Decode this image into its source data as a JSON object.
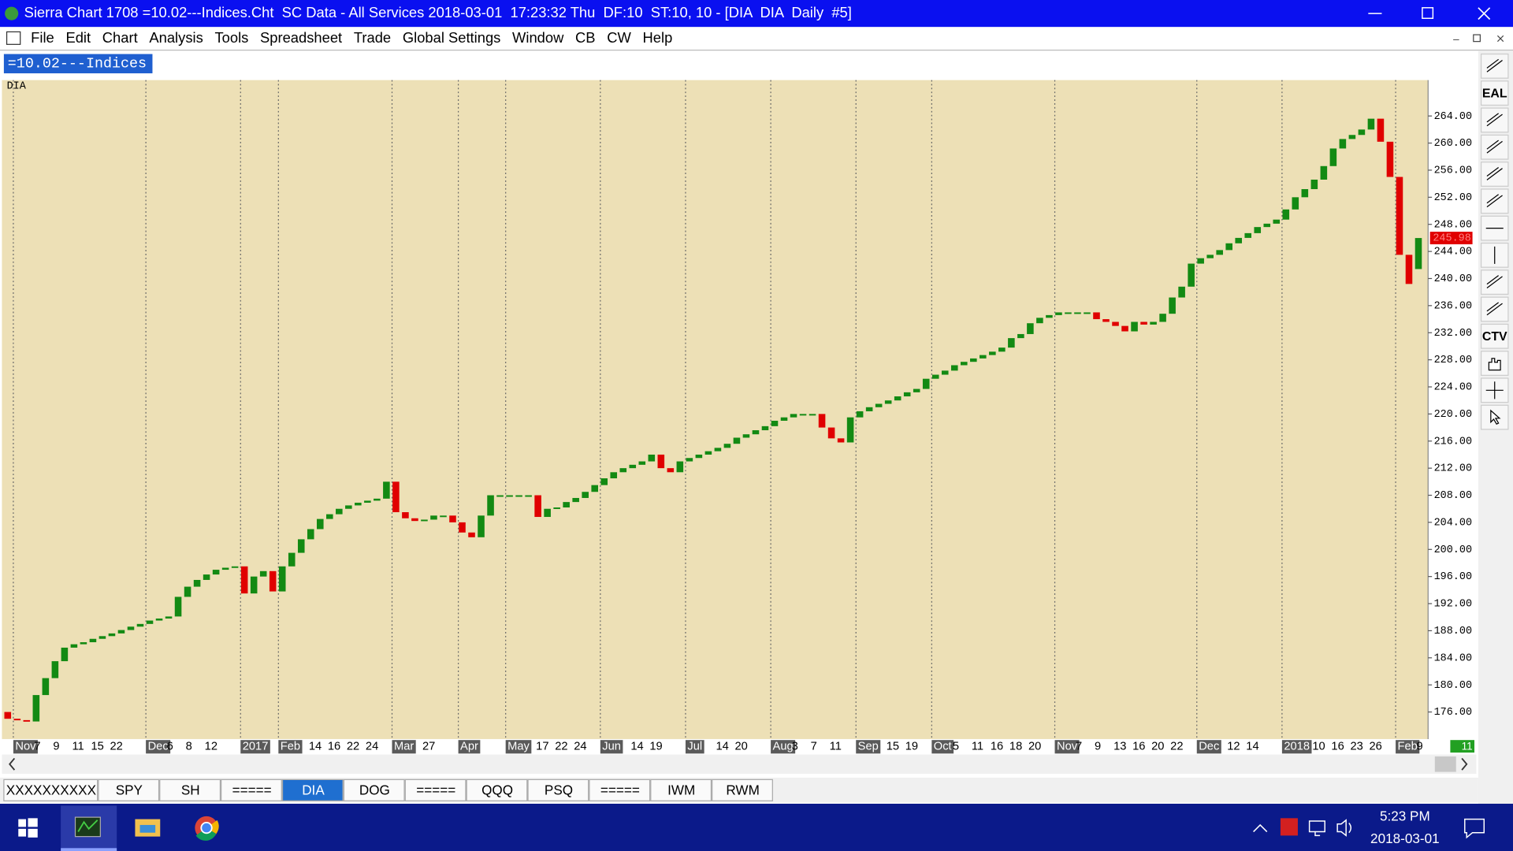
{
  "window": {
    "title": "Sierra Chart 1708 =10.02---Indices.Cht  SC Data - All Services 2018-03-01  17:23:32 Thu  DF:10  ST:10, 10 - [DIA  DIA  Daily  #5]"
  },
  "menu": [
    "File",
    "Edit",
    "Chart",
    "Analysis",
    "Tools",
    "Spreadsheet",
    "Trade",
    "Global Settings",
    "Window",
    "CB",
    "CW",
    "Help"
  ],
  "chart_tab": "=10.02---Indices",
  "toolbar": {
    "eal": "EAL",
    "ctv": "CTV"
  },
  "chart_data": {
    "type": "candlestick",
    "symbol": "DIA",
    "up_color": "#138a13",
    "down_color": "#e00000",
    "categories": [
      null,
      "Nov",
      null,
      "7",
      null,
      "9",
      null,
      "11",
      null,
      "15",
      null,
      "22",
      null,
      null,
      null,
      "Dec",
      null,
      "6",
      null,
      "8",
      null,
      "12",
      null,
      null,
      null,
      "2017",
      null,
      null,
      null,
      "Feb",
      null,
      null,
      "14",
      null,
      "16",
      null,
      "22",
      null,
      "24",
      null,
      null,
      "Mar",
      null,
      null,
      "27",
      null,
      null,
      null,
      "Apr",
      null,
      null,
      null,
      null,
      "May",
      null,
      null,
      "17",
      null,
      "22",
      null,
      "24",
      null,
      null,
      "Jun",
      null,
      null,
      "14",
      null,
      "19",
      null,
      null,
      null,
      "Jul",
      null,
      null,
      "14",
      null,
      "20",
      null,
      null,
      null,
      "Aug",
      null,
      "3",
      null,
      "7",
      null,
      "11",
      null,
      null,
      "Sep",
      null,
      null,
      "15",
      null,
      "19",
      null,
      null,
      "Oct",
      null,
      "5",
      null,
      "11",
      null,
      "16",
      null,
      "18",
      null,
      "20",
      null,
      null,
      "Nov",
      null,
      "7",
      null,
      "9",
      null,
      "13",
      null,
      "16",
      null,
      "20",
      null,
      "22",
      null,
      null,
      "Dec",
      null,
      null,
      "12",
      null,
      "14",
      null,
      null,
      null,
      "2018",
      null,
      null,
      "10",
      null,
      "16",
      null,
      "23",
      null,
      "26",
      null,
      null,
      "Feb",
      null,
      "9"
    ],
    "open": [
      176,
      175.0,
      174.8,
      174.6,
      178.5,
      181,
      183.5,
      185.5,
      186,
      186.3,
      186.8,
      187.2,
      187.6,
      188.1,
      188.6,
      189,
      189.5,
      189.8,
      190.1,
      193,
      194.5,
      195.5,
      196.3,
      197,
      197.3,
      197.5,
      193.5,
      196,
      196.8,
      193.8,
      197.5,
      199.5,
      201.5,
      203,
      204.5,
      205.2,
      206,
      206.5,
      206.9,
      207.2,
      207.5,
      210,
      205.5,
      204.6,
      204.2,
      204.4,
      205,
      205,
      204,
      202.5,
      201.8,
      205,
      208,
      208,
      208,
      208,
      208,
      204.8,
      206,
      206.2,
      207,
      207.6,
      208.5,
      209.5,
      210.5,
      211.4,
      212,
      212.5,
      213,
      214,
      212,
      211.4,
      213,
      213.5,
      214,
      214.5,
      215,
      215.6,
      216.5,
      217,
      217.6,
      218.2,
      219,
      219.5,
      220,
      220,
      220,
      218,
      216.4,
      215.8,
      219.5,
      220.4,
      221,
      221.5,
      222,
      222.6,
      223.2,
      223.7,
      225.2,
      225.8,
      226.4,
      227.2,
      227.7,
      228.2,
      228.7,
      229.2,
      229.8,
      231.2,
      231.8,
      233.4,
      234.2,
      234.6,
      235,
      235,
      235,
      235,
      234,
      233.6,
      233,
      232.2,
      233.6,
      233.2,
      233.6,
      234.8,
      237.2,
      238.8,
      242.2,
      243,
      243.5,
      244.2,
      245.2,
      246,
      246.7,
      247.6,
      248.1,
      248.7,
      250.2,
      252,
      253.2,
      254.6,
      256.6,
      259.2,
      260.6,
      261.2,
      262,
      263.6,
      260.2,
      255,
      243.5,
      241.4
    ],
    "close": [
      175.0,
      174.8,
      174.6,
      178.5,
      181,
      183.5,
      185.5,
      186,
      186.3,
      186.8,
      187.2,
      187.6,
      188.1,
      188.6,
      189,
      189.5,
      189.8,
      190.1,
      193,
      194.5,
      195.5,
      196.3,
      197,
      197.3,
      197.5,
      193.5,
      196,
      196.8,
      193.8,
      197.5,
      199.5,
      201.5,
      203,
      204.5,
      205.2,
      206,
      206.5,
      206.9,
      207.2,
      207.5,
      210,
      205.5,
      204.6,
      204.2,
      204.4,
      205,
      205,
      204,
      202.5,
      201.8,
      205,
      208,
      208,
      208,
      208,
      208,
      204.8,
      206,
      206.2,
      207,
      207.6,
      208.5,
      209.5,
      210.5,
      211.4,
      212,
      212.5,
      213,
      214,
      212,
      211.4,
      213,
      213.5,
      214,
      214.5,
      215,
      215.6,
      216.5,
      217,
      217.6,
      218.2,
      219,
      219.5,
      220,
      220,
      220,
      218,
      216.4,
      215.8,
      219.5,
      220.4,
      221,
      221.5,
      222,
      222.6,
      223.2,
      223.7,
      225.2,
      225.8,
      226.4,
      227.2,
      227.7,
      228.2,
      228.7,
      229.2,
      229.8,
      231.2,
      231.8,
      233.4,
      234.2,
      234.6,
      235,
      235,
      235,
      235,
      234,
      233.6,
      233,
      232.2,
      233.6,
      233.2,
      233.6,
      234.8,
      237.2,
      238.8,
      242.2,
      243,
      243.5,
      244.2,
      245.2,
      246,
      246.7,
      247.6,
      248.1,
      248.7,
      250.2,
      252,
      253.2,
      254.6,
      256.6,
      259.2,
      260.6,
      261.2,
      262,
      263.6,
      260.2,
      255,
      243.5,
      239.2,
      245.98
    ],
    "ylim": [
      172,
      269.3
    ],
    "yticks": [
      {
        "value": 176,
        "label": "176.00"
      },
      {
        "value": 180,
        "label": "180.00"
      },
      {
        "value": 184,
        "label": "184.00"
      },
      {
        "value": 188,
        "label": "188.00"
      },
      {
        "value": 192,
        "label": "192.00"
      },
      {
        "value": 196,
        "label": "196.00"
      },
      {
        "value": 200,
        "label": "200.00"
      },
      {
        "value": 204,
        "label": "204.00"
      },
      {
        "value": 208,
        "label": "208.00"
      },
      {
        "value": 212,
        "label": "212.00"
      },
      {
        "value": 216,
        "label": "216.00"
      },
      {
        "value": 220,
        "label": "220.00"
      },
      {
        "value": 224,
        "label": "224.00"
      },
      {
        "value": 228,
        "label": "228.00"
      },
      {
        "value": 232,
        "label": "232.00"
      },
      {
        "value": 236,
        "label": "236.00"
      },
      {
        "value": 240,
        "label": "240.00"
      },
      {
        "value": 244,
        "label": "244.00"
      },
      {
        "value": 248,
        "label": "248.00"
      },
      {
        "value": 252,
        "label": "252.00"
      },
      {
        "value": 256,
        "label": "256.00"
      },
      {
        "value": 260,
        "label": "260.00"
      },
      {
        "value": 264,
        "label": "264.00"
      }
    ]
  },
  "x_end_label": "11",
  "tabs": [
    "XXXXXXXXXX",
    "SPY",
    "SH",
    "=====",
    "DIA",
    "DOG",
    "=====",
    "QQQ",
    "PSQ",
    "=====",
    "IWM",
    "RWM"
  ],
  "active_tab": 4,
  "taskbar": {
    "time": "5:23 PM",
    "date": "2018-03-01"
  }
}
